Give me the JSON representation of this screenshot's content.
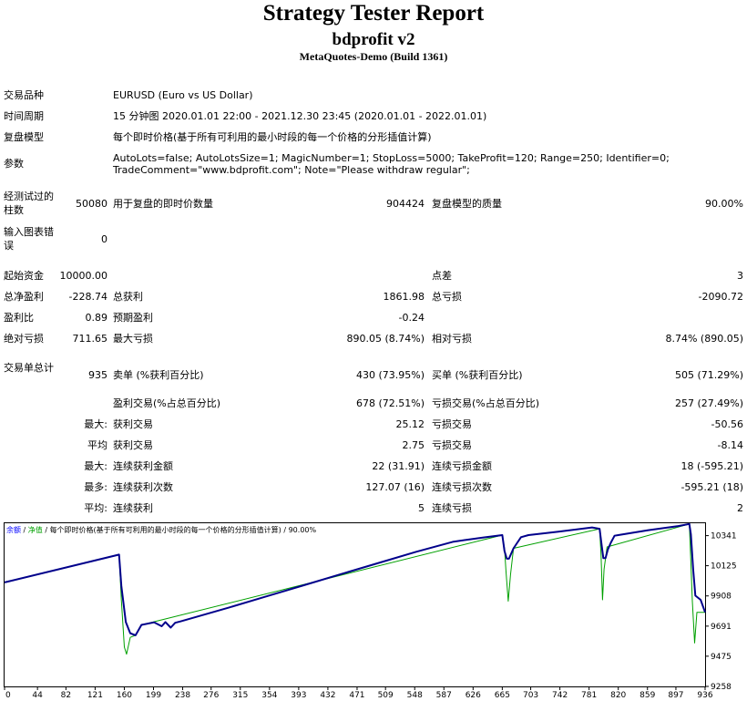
{
  "header": {
    "title": "Strategy Tester Report",
    "ea_name": "bdprofit v2",
    "server": "MetaQuotes-Demo (Build 1361)"
  },
  "info": {
    "symbol_label": "交易品种",
    "symbol_value": "EURUSD (Euro vs US Dollar)",
    "period_label": "时间周期",
    "period_value": "15 分钟图 2020.01.01 22:00 - 2021.12.30 23:45 (2020.01.01 - 2022.01.01)",
    "model_label": "复盘模型",
    "model_value": "每个即时价格(基于所有可利用的最小时段的每一个价格的分形插值计算)",
    "params_label": "参数",
    "params_line1": "AutoLots=false; AutoLotsSize=1; MagicNumber=1; StopLoss=5000; TakeProfit=120; Range=250; Identifier=0;",
    "params_line2": "TradeComment=\"www.bdprofit.com\"; Note=\"Please withdraw regular\";"
  },
  "stats": {
    "bars_label": "经测试过的柱数",
    "bars_value": "50080",
    "ticks_label": "用于复盘的即时价数量",
    "ticks_value": "904424",
    "quality_label": "复盘模型的质量",
    "quality_value": "90.00%",
    "errors_label": "输入图表错误",
    "errors_value": "0",
    "deposit_label": "起始资金",
    "deposit_value": "10000.00",
    "spread_label": "点差",
    "spread_value": "3",
    "netprofit_label": "总净盈利",
    "netprofit_value": "-228.74",
    "grossprofit_label": "总获利",
    "grossprofit_value": "1861.98",
    "grossloss_label": "总亏损",
    "grossloss_value": "-2090.72",
    "pf_label": "盈利比",
    "pf_value": "0.89",
    "payoff_label": "预期盈利",
    "payoff_value": "-0.24",
    "absdd_label": "绝对亏损",
    "absdd_value": "711.65",
    "maxdd_label": "最大亏损",
    "maxdd_value": "890.05 (8.74%)",
    "reldd_label": "相对亏损",
    "reldd_value": "8.74% (890.05)",
    "trades_label": "交易单总计",
    "trades_value": "935",
    "short_label": "卖单 (%获利百分比)",
    "short_value": "430 (73.95%)",
    "long_label": "买单 (%获利百分比)",
    "long_value": "505 (71.29%)",
    "profitable_label": "盈利交易(%占总百分比)",
    "profitable_value": "678 (72.51%)",
    "losing_label": "亏损交易(%占总百分比)",
    "losing_value": "257 (27.49%)",
    "largest_label": "最大:",
    "largest_profit_label": "获利交易",
    "largest_profit_value": "25.12",
    "largest_loss_label": "亏损交易",
    "largest_loss_value": "-50.56",
    "average_label": "平均",
    "average_profit_label": "获利交易",
    "average_profit_value": "2.75",
    "average_loss_label": "亏损交易",
    "average_loss_value": "-8.14",
    "maxcons_label": "最大:",
    "maxcons_wins_label": "连续获利金额",
    "maxcons_wins_value": "22 (31.91)",
    "maxcons_losses_label": "连续亏损金额",
    "maxcons_losses_value": "18 (-595.21)",
    "maxconsamt_label": "最多:",
    "maxconsamt_profit_label": "连续获利次数",
    "maxconsamt_profit_value": "127.07 (16)",
    "maxconsamt_loss_label": "连续亏损次数",
    "maxconsamt_loss_value": "-595.21 (18)",
    "avgcons_label": "平均:",
    "avgcons_wins_label": "连续获利",
    "avgcons_wins_value": "5",
    "avgcons_losses_label": "连续亏损",
    "avgcons_losses_value": "2"
  },
  "chart_data": {
    "type": "line",
    "legend": {
      "balance": "余额",
      "sep1": " / ",
      "equity": "净值",
      "sep2": " / ",
      "model": "每个即时价格(基于所有可利用的最小时段的每一个价格的分形插值计算)",
      "sep3": " / ",
      "quality": "90.00%"
    },
    "colors": {
      "balance": "#00008b",
      "equity": "#00a000",
      "axis": "#000000",
      "legend_balance": "#0000ff"
    },
    "x_ticks": [
      0,
      44,
      82,
      121,
      160,
      199,
      238,
      276,
      315,
      354,
      393,
      432,
      471,
      509,
      548,
      587,
      626,
      665,
      703,
      742,
      781,
      820,
      859,
      897,
      936
    ],
    "y_ticks": [
      9258,
      9475,
      9691,
      9908,
      10125,
      10341
    ],
    "xlim": [
      0,
      936
    ],
    "ylim": [
      9258,
      10430
    ],
    "series": [
      {
        "key": "balance",
        "x": [
          0,
          153,
          156,
          162,
          168,
          175,
          183,
          200,
          210,
          215,
          222,
          228,
          235,
          250,
          300,
          350,
          400,
          450,
          500,
          550,
          600,
          640,
          665,
          668,
          671,
          674,
          680,
          690,
          700,
          740,
          785,
          795,
          798,
          800,
          803,
          806,
          810,
          815,
          820,
          860,
          900,
          915,
          917,
          920,
          923,
          930,
          936
        ],
        "y": [
          10005,
          10205,
          9980,
          9720,
          9640,
          9625,
          9700,
          9718,
          9690,
          9720,
          9680,
          9715,
          9725,
          9748,
          9825,
          9905,
          9985,
          10065,
          10145,
          10225,
          10298,
          10328,
          10345,
          10230,
          10175,
          10175,
          10250,
          10330,
          10345,
          10370,
          10400,
          10390,
          10265,
          10180,
          10180,
          10240,
          10290,
          10340,
          10345,
          10380,
          10410,
          10425,
          10350,
          10100,
          9910,
          9880,
          9790
        ]
      },
      {
        "key": "equity",
        "x": [
          0,
          153,
          156,
          160,
          163,
          168,
          175,
          183,
          665,
          668,
          670,
          673,
          676,
          680,
          795,
          797,
          799,
          801,
          805,
          915,
          917,
          919,
          922,
          925,
          928,
          936
        ],
        "y": [
          10005,
          10205,
          9880,
          9540,
          9490,
          9610,
          9625,
          9700,
          10345,
          10250,
          10080,
          9870,
          10060,
          10250,
          10390,
          10200,
          9880,
          10100,
          10260,
          10425,
          10150,
          9870,
          9570,
          9790,
          9790,
          9790
        ]
      }
    ]
  }
}
